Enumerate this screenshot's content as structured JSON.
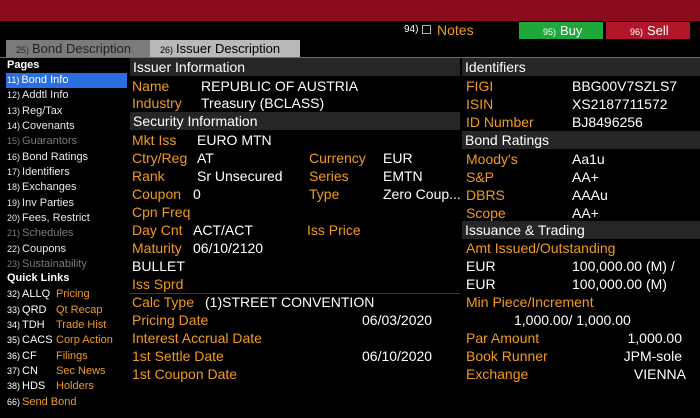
{
  "toolbar": {
    "notes_num": "94)",
    "notes_label": "Notes",
    "buy_num": "95)",
    "buy_label": "Buy",
    "sell_num": "96)",
    "sell_label": "Sell"
  },
  "tabs": [
    {
      "num": "25)",
      "label": "Bond Description"
    },
    {
      "num": "26)",
      "label": "Issuer Description"
    }
  ],
  "sidebar": {
    "pages_title": "Pages",
    "items": [
      {
        "num": "11)",
        "label": "Bond Info"
      },
      {
        "num": "12)",
        "label": "Addtl Info"
      },
      {
        "num": "13)",
        "label": "Reg/Tax"
      },
      {
        "num": "14)",
        "label": "Covenants"
      },
      {
        "num": "15)",
        "label": "Guarantors"
      },
      {
        "num": "16)",
        "label": "Bond Ratings"
      },
      {
        "num": "17)",
        "label": "Identifiers"
      },
      {
        "num": "18)",
        "label": "Exchanges"
      },
      {
        "num": "19)",
        "label": "Inv Parties"
      },
      {
        "num": "20)",
        "label": "Fees, Restrict"
      },
      {
        "num": "21)",
        "label": "Schedules"
      },
      {
        "num": "22)",
        "label": "Coupons"
      },
      {
        "num": "23)",
        "label": "Sustainability"
      }
    ],
    "quick_links_title": "Quick Links",
    "quick_links": [
      {
        "num": "32)",
        "code": "ALLQ",
        "label": "Pricing"
      },
      {
        "num": "33)",
        "code": "QRD",
        "label": "Qt Recap"
      },
      {
        "num": "34)",
        "code": "TDH",
        "label": "Trade Hist"
      },
      {
        "num": "35)",
        "code": "CACS",
        "label": "Corp Action"
      },
      {
        "num": "36)",
        "code": "CF",
        "label": "Filings"
      },
      {
        "num": "37)",
        "code": "CN",
        "label": "Sec News"
      },
      {
        "num": "38)",
        "code": "HDS",
        "label": "Holders"
      }
    ],
    "send_num": "66)",
    "send_label": "Send Bond"
  },
  "issuer": {
    "header": "Issuer Information",
    "name_label": "Name",
    "name_value": "REPUBLIC OF AUSTRIA",
    "industry_label": "Industry",
    "industry_value": "Treasury (BCLASS)"
  },
  "security": {
    "header": "Security Information",
    "mkt_iss_label": "Mkt Iss",
    "mkt_iss_value": "EURO MTN",
    "ctry_label": "Ctry/Reg",
    "ctry_value": "AT",
    "currency_label": "Currency",
    "currency_value": "EUR",
    "rank_label": "Rank",
    "rank_value": "Sr Unsecured",
    "series_label": "Series",
    "series_value": "EMTN",
    "coupon_label": "Coupon",
    "coupon_value": "0",
    "type_label": "Type",
    "type_value": "Zero Coup...",
    "cpn_freq_label": "Cpn Freq",
    "day_cnt_label": "Day Cnt",
    "day_cnt_value": "ACT/ACT",
    "iss_price_label": "Iss Price",
    "maturity_label": "Maturity",
    "maturity_value": "06/10/2120",
    "bullet": "BULLET",
    "iss_sprd_label": "Iss Sprd",
    "calc_type_label": "Calc Type",
    "calc_type_value": "(1)STREET CONVENTION",
    "pricing_date_label": "Pricing Date",
    "pricing_date_value": "06/03/2020",
    "interest_accrual_label": "Interest Accrual Date",
    "first_settle_label": "1st Settle Date",
    "first_settle_value": "06/10/2020",
    "first_coupon_label": "1st Coupon Date"
  },
  "identifiers": {
    "header": "Identifiers",
    "figi_label": "FIGI",
    "figi_value": "BBG00V7SZLS7",
    "isin_label": "ISIN",
    "isin_value": "XS2187711572",
    "id_label": "ID Number",
    "id_value": "BJ8496256"
  },
  "ratings": {
    "header": "Bond Ratings",
    "moodys_label": "Moody's",
    "moodys_value": "Aa1u",
    "sp_label": "S&P",
    "sp_value": "AA+",
    "dbrs_label": "DBRS",
    "dbrs_value": "AAAu",
    "scope_label": "Scope",
    "scope_value": "AA+"
  },
  "issuance": {
    "header": "Issuance & Trading",
    "amt_label": "Amt Issued/Outstanding",
    "amt1_ccy": "EUR",
    "amt1_value": "100,000.00 (M)  /",
    "amt2_ccy": "EUR",
    "amt2_value": "100,000.00 (M)",
    "min_piece_label": "Min Piece/Increment",
    "min_piece_value": "1,000.00/ 1,000.00",
    "par_label": "Par Amount",
    "par_value": "1,000.00",
    "book_label": "Book Runner",
    "book_value": "JPM-sole",
    "exchange_label": "Exchange",
    "exchange_value": "VIENNA"
  },
  "colors": {
    "top_band": "#8b0c1c",
    "accent_orange": "#f39a1d",
    "buy_green": "#1fa83a",
    "sell_red": "#b2162b",
    "selected_blue": "#2a6fe1",
    "header_gray": "#262626"
  }
}
